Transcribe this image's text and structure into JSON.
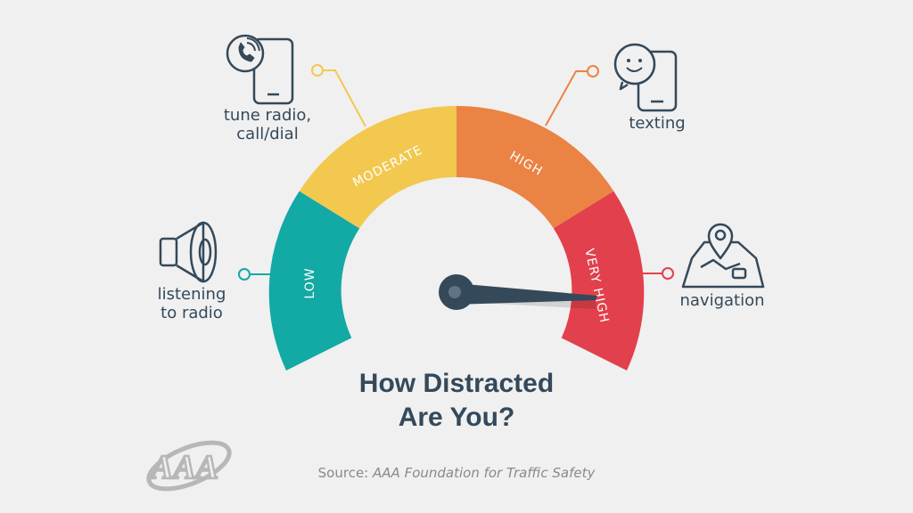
{
  "title": {
    "line1": "How Distracted",
    "line2": "Are You?"
  },
  "source": {
    "prefix": "Source:",
    "text": "AAA Foundation for Traffic Safety"
  },
  "logo": {
    "text": "AAA"
  },
  "gauge": {
    "segments": [
      {
        "label": "LOW",
        "color": "#13a9a4"
      },
      {
        "label": "MODERATE",
        "color": "#f2c84f"
      },
      {
        "label": "HIGH",
        "color": "#ea8343"
      },
      {
        "label": "VERY HIGH",
        "color": "#e2404c"
      }
    ],
    "needle_level": "VERY HIGH",
    "needle_color": "#34495a"
  },
  "activities": [
    {
      "line1": "listening",
      "line2": "to radio",
      "icon": "speaker-icon",
      "level": "LOW"
    },
    {
      "line1": "tune radio,",
      "line2": "call/dial",
      "icon": "phone-call-icon",
      "level": "MODERATE"
    },
    {
      "line1": "texting",
      "line2": "",
      "icon": "texting-phone-icon",
      "level": "HIGH"
    },
    {
      "line1": "navigation",
      "line2": "",
      "icon": "map-pin-icon",
      "level": "VERY HIGH"
    }
  ]
}
